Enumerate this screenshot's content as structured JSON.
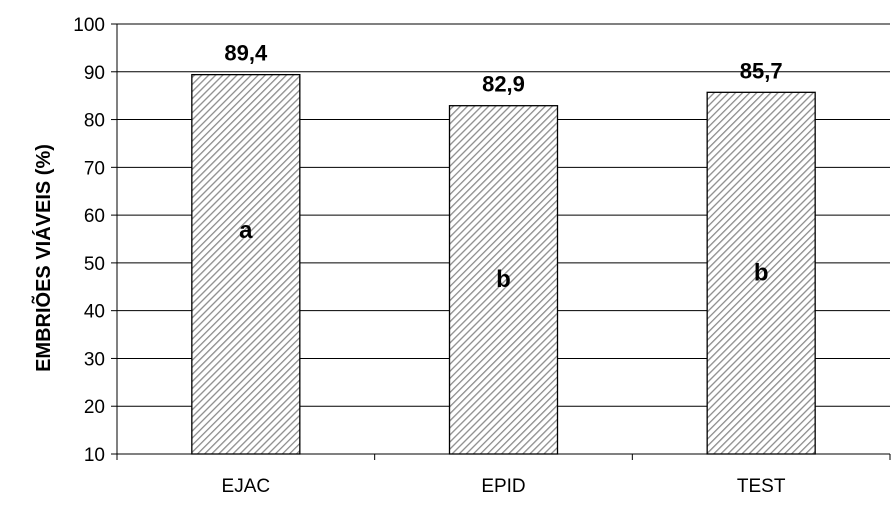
{
  "chart_data": {
    "type": "bar",
    "title": "",
    "xlabel": "",
    "ylabel": "EMBRIÕES VIÁVEIS (%)",
    "categories": [
      "EJAC",
      "EPID",
      "TEST"
    ],
    "values": [
      89.4,
      82.9,
      85.7
    ],
    "data_labels": [
      "89,4",
      "82,9",
      "85,7"
    ],
    "group_letters": [
      "a",
      "b",
      "b"
    ],
    "ylim": [
      10,
      100
    ],
    "yticks": [
      10,
      20,
      30,
      40,
      50,
      60,
      70,
      80,
      90,
      100
    ],
    "grid": true,
    "legend": "none",
    "bar_fill": "hatched-gray",
    "colors": {
      "bar_stroke": "#000000",
      "hatch": "#8c8c8c",
      "grid": "#000000"
    }
  }
}
